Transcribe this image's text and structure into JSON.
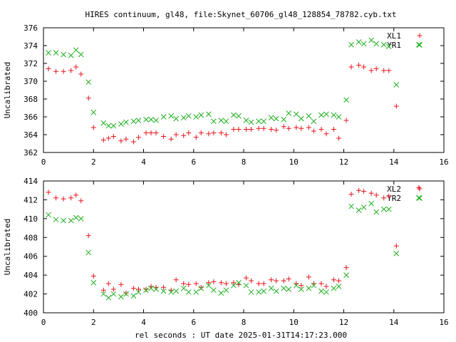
{
  "title": "HIRES continuum, gl48, file:Skynet_60706_gl48_128854_78782.cyb.txt",
  "xlabel": "rel seconds : UT date 2025-01-31T14:17:23.000",
  "colors": {
    "series_a": "#e8141c",
    "series_b": "#20b020",
    "frame": "#000000"
  },
  "chart_data": [
    {
      "type": "scatter",
      "ylabel": "Uncalibrated",
      "xlim": [
        0,
        16
      ],
      "ylim": [
        362,
        376
      ],
      "xticks": [
        "0",
        "2",
        "4",
        "6",
        "8",
        "10",
        "12",
        "14",
        "16"
      ],
      "yticks": [
        "362",
        "364",
        "366",
        "368",
        "370",
        "372",
        "374",
        "376"
      ],
      "legend_position": "top-right",
      "series": [
        {
          "name": "XL1",
          "marker": "plus",
          "color": "#e8141c",
          "points": [
            [
              0.2,
              371.4
            ],
            [
              0.5,
              371.1
            ],
            [
              0.8,
              371.1
            ],
            [
              1.1,
              371.2
            ],
            [
              1.3,
              371.6
            ],
            [
              1.5,
              370.8
            ],
            [
              1.8,
              368.1
            ],
            [
              2.0,
              364.8
            ],
            [
              2.4,
              363.4
            ],
            [
              2.6,
              363.6
            ],
            [
              2.8,
              363.8
            ],
            [
              3.1,
              363.3
            ],
            [
              3.3,
              363.5
            ],
            [
              3.6,
              363.2
            ],
            [
              3.8,
              363.7
            ],
            [
              4.1,
              364.2
            ],
            [
              4.3,
              364.2
            ],
            [
              4.5,
              364.2
            ],
            [
              4.8,
              363.8
            ],
            [
              5.1,
              363.5
            ],
            [
              5.3,
              364.0
            ],
            [
              5.6,
              363.9
            ],
            [
              5.8,
              364.2
            ],
            [
              6.1,
              363.7
            ],
            [
              6.3,
              364.2
            ],
            [
              6.6,
              364.1
            ],
            [
              6.8,
              364.2
            ],
            [
              7.1,
              364.2
            ],
            [
              7.3,
              364.0
            ],
            [
              7.6,
              364.6
            ],
            [
              7.8,
              364.6
            ],
            [
              8.1,
              364.6
            ],
            [
              8.3,
              364.6
            ],
            [
              8.6,
              364.7
            ],
            [
              8.8,
              364.7
            ],
            [
              9.1,
              364.6
            ],
            [
              9.3,
              364.5
            ],
            [
              9.6,
              364.9
            ],
            [
              9.8,
              364.7
            ],
            [
              10.1,
              364.8
            ],
            [
              10.3,
              364.7
            ],
            [
              10.6,
              364.8
            ],
            [
              10.8,
              364.4
            ],
            [
              11.1,
              364.6
            ],
            [
              11.3,
              364.1
            ],
            [
              11.6,
              364.6
            ],
            [
              11.8,
              363.6
            ],
            [
              12.1,
              365.6
            ],
            [
              12.3,
              371.6
            ],
            [
              12.6,
              371.8
            ],
            [
              12.8,
              371.6
            ],
            [
              13.1,
              371.2
            ],
            [
              13.3,
              371.4
            ],
            [
              13.6,
              371.2
            ],
            [
              13.8,
              371.2
            ],
            [
              14.1,
              367.2
            ]
          ]
        },
        {
          "name": "YR1",
          "marker": "cross",
          "color": "#20b020",
          "points": [
            [
              0.2,
              373.2
            ],
            [
              0.5,
              373.2
            ],
            [
              0.8,
              373.0
            ],
            [
              1.1,
              372.9
            ],
            [
              1.3,
              373.5
            ],
            [
              1.5,
              373.0
            ],
            [
              1.8,
              369.9
            ],
            [
              2.0,
              366.5
            ],
            [
              2.4,
              365.3
            ],
            [
              2.6,
              365.0
            ],
            [
              2.8,
              365.0
            ],
            [
              3.1,
              365.2
            ],
            [
              3.3,
              365.4
            ],
            [
              3.6,
              365.5
            ],
            [
              3.8,
              365.6
            ],
            [
              4.1,
              365.7
            ],
            [
              4.3,
              365.7
            ],
            [
              4.5,
              365.6
            ],
            [
              4.8,
              366.0
            ],
            [
              5.1,
              366.1
            ],
            [
              5.3,
              365.8
            ],
            [
              5.6,
              365.9
            ],
            [
              5.8,
              366.1
            ],
            [
              6.1,
              366.0
            ],
            [
              6.3,
              366.2
            ],
            [
              6.6,
              366.3
            ],
            [
              6.8,
              365.5
            ],
            [
              7.1,
              365.6
            ],
            [
              7.3,
              365.5
            ],
            [
              7.6,
              366.2
            ],
            [
              7.8,
              366.1
            ],
            [
              8.1,
              365.6
            ],
            [
              8.3,
              365.4
            ],
            [
              8.6,
              365.5
            ],
            [
              8.8,
              365.5
            ],
            [
              9.1,
              365.9
            ],
            [
              9.3,
              365.8
            ],
            [
              9.6,
              365.7
            ],
            [
              9.8,
              366.4
            ],
            [
              10.1,
              366.3
            ],
            [
              10.3,
              365.8
            ],
            [
              10.6,
              366.1
            ],
            [
              10.8,
              365.5
            ],
            [
              11.1,
              366.2
            ],
            [
              11.3,
              366.3
            ],
            [
              11.6,
              366.2
            ],
            [
              11.8,
              366.0
            ],
            [
              12.1,
              367.9
            ],
            [
              12.3,
              374.1
            ],
            [
              12.6,
              374.4
            ],
            [
              12.8,
              374.2
            ],
            [
              13.1,
              374.6
            ],
            [
              13.3,
              374.2
            ],
            [
              13.6,
              374.1
            ],
            [
              13.8,
              373.9
            ],
            [
              14.1,
              369.6
            ],
            [
              15.0,
              374.1
            ]
          ]
        }
      ]
    },
    {
      "type": "scatter",
      "ylabel": "Uncalibrated",
      "xlim": [
        0,
        16
      ],
      "ylim": [
        400,
        414
      ],
      "xticks": [
        "0",
        "2",
        "4",
        "6",
        "8",
        "10",
        "12",
        "14",
        "16"
      ],
      "yticks": [
        "400",
        "402",
        "404",
        "406",
        "408",
        "410",
        "412",
        "414"
      ],
      "legend_position": "top-right",
      "series": [
        {
          "name": "XL2",
          "marker": "plus",
          "color": "#e8141c",
          "points": [
            [
              0.2,
              412.8
            ],
            [
              0.5,
              412.2
            ],
            [
              0.8,
              412.1
            ],
            [
              1.1,
              412.2
            ],
            [
              1.3,
              412.5
            ],
            [
              1.5,
              411.9
            ],
            [
              1.8,
              408.2
            ],
            [
              2.0,
              403.9
            ],
            [
              2.4,
              402.4
            ],
            [
              2.6,
              403.1
            ],
            [
              2.8,
              402.5
            ],
            [
              3.1,
              403.0
            ],
            [
              3.3,
              402.1
            ],
            [
              3.6,
              402.6
            ],
            [
              3.8,
              402.5
            ],
            [
              4.1,
              402.5
            ],
            [
              4.3,
              402.8
            ],
            [
              4.5,
              402.7
            ],
            [
              4.8,
              402.7
            ],
            [
              5.1,
              402.4
            ],
            [
              5.3,
              403.5
            ],
            [
              5.6,
              403.1
            ],
            [
              5.8,
              403.0
            ],
            [
              6.1,
              403.1
            ],
            [
              6.3,
              402.7
            ],
            [
              6.6,
              403.2
            ],
            [
              6.8,
              403.3
            ],
            [
              7.1,
              403.2
            ],
            [
              7.3,
              403.1
            ],
            [
              7.6,
              403.2
            ],
            [
              7.8,
              403.0
            ],
            [
              8.1,
              403.7
            ],
            [
              8.3,
              403.4
            ],
            [
              8.6,
              403.1
            ],
            [
              8.8,
              403.1
            ],
            [
              9.1,
              403.5
            ],
            [
              9.3,
              403.4
            ],
            [
              9.6,
              403.4
            ],
            [
              9.8,
              403.6
            ],
            [
              10.1,
              403.1
            ],
            [
              10.3,
              402.9
            ],
            [
              10.6,
              403.8
            ],
            [
              10.8,
              403.1
            ],
            [
              11.1,
              403.1
            ],
            [
              11.3,
              402.8
            ],
            [
              11.6,
              403.5
            ],
            [
              11.8,
              403.4
            ],
            [
              12.1,
              404.8
            ],
            [
              12.3,
              412.6
            ],
            [
              12.6,
              413.0
            ],
            [
              12.8,
              412.9
            ],
            [
              13.1,
              412.7
            ],
            [
              13.3,
              412.5
            ],
            [
              13.6,
              412.2
            ],
            [
              13.8,
              412.4
            ],
            [
              14.1,
              407.1
            ],
            [
              15.0,
              413.3
            ]
          ]
        },
        {
          "name": "YR2",
          "marker": "cross",
          "color": "#20b020",
          "points": [
            [
              0.2,
              410.4
            ],
            [
              0.5,
              409.9
            ],
            [
              0.8,
              409.8
            ],
            [
              1.1,
              409.8
            ],
            [
              1.3,
              410.1
            ],
            [
              1.5,
              410.0
            ],
            [
              1.8,
              406.4
            ],
            [
              2.0,
              403.2
            ],
            [
              2.4,
              402.0
            ],
            [
              2.6,
              401.6
            ],
            [
              2.8,
              402.0
            ],
            [
              3.1,
              401.7
            ],
            [
              3.3,
              402.0
            ],
            [
              3.6,
              401.8
            ],
            [
              3.8,
              402.2
            ],
            [
              4.1,
              402.4
            ],
            [
              4.3,
              402.6
            ],
            [
              4.5,
              402.5
            ],
            [
              4.8,
              402.3
            ],
            [
              5.1,
              402.2
            ],
            [
              5.3,
              402.3
            ],
            [
              5.6,
              402.6
            ],
            [
              5.8,
              402.2
            ],
            [
              6.1,
              402.2
            ],
            [
              6.3,
              402.6
            ],
            [
              6.6,
              402.9
            ],
            [
              6.8,
              402.4
            ],
            [
              7.1,
              402.1
            ],
            [
              7.3,
              402.4
            ],
            [
              7.6,
              402.9
            ],
            [
              7.8,
              403.2
            ],
            [
              8.1,
              402.9
            ],
            [
              8.3,
              402.2
            ],
            [
              8.6,
              402.2
            ],
            [
              8.8,
              402.3
            ],
            [
              9.1,
              402.6
            ],
            [
              9.3,
              402.3
            ],
            [
              9.6,
              402.6
            ],
            [
              9.8,
              402.5
            ],
            [
              10.1,
              402.9
            ],
            [
              10.3,
              402.5
            ],
            [
              10.6,
              402.6
            ],
            [
              10.8,
              402.9
            ],
            [
              11.1,
              402.3
            ],
            [
              11.3,
              402.2
            ],
            [
              11.6,
              402.6
            ],
            [
              11.8,
              402.8
            ],
            [
              12.1,
              404.0
            ],
            [
              12.3,
              411.3
            ],
            [
              12.6,
              410.9
            ],
            [
              12.8,
              411.2
            ],
            [
              13.1,
              411.6
            ],
            [
              13.3,
              410.7
            ],
            [
              13.6,
              411.0
            ],
            [
              13.8,
              411.0
            ],
            [
              14.1,
              406.3
            ],
            [
              15.0,
              412.2
            ]
          ]
        }
      ]
    }
  ]
}
